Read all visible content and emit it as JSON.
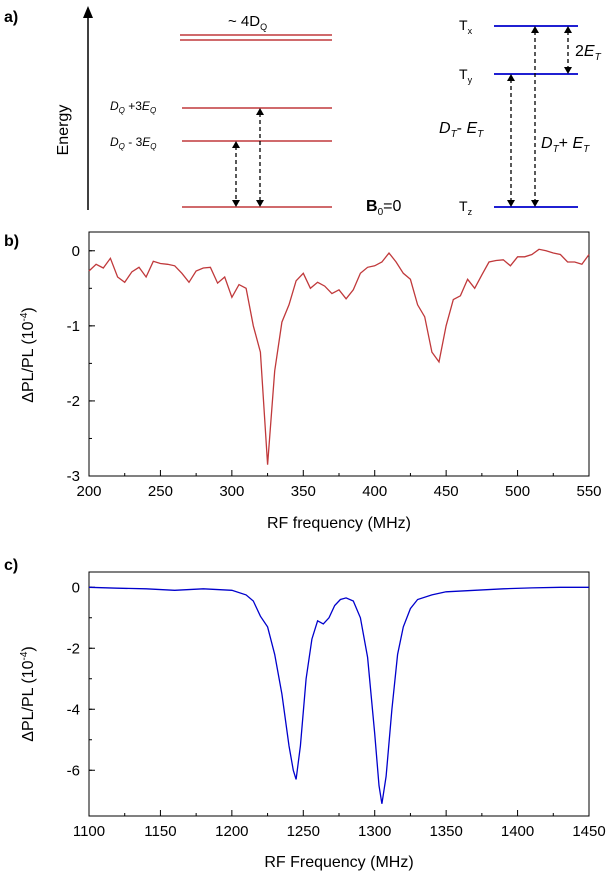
{
  "panel_a": {
    "label": "a)",
    "energy_label": "Energy",
    "quartet": {
      "top_label_main": "~ 4D",
      "top_label_sub": "Q",
      "upper_D": "D",
      "upper_Dsub": "Q",
      "upper_rest": " +3",
      "upper_E": "E",
      "upper_Esub": "Q",
      "lower_D": "D",
      "lower_Dsub": "Q",
      "lower_rest": " - 3",
      "lower_E": "E",
      "lower_Esub": "Q",
      "color": "#c0393b"
    },
    "b0_label_main": "B",
    "b0_label_sub": "0",
    "b0_label_rest": "=0",
    "triplet": {
      "tx": "T",
      "tx_sub": "x",
      "ty": "T",
      "ty_sub": "y",
      "tz": "T",
      "tz_sub": "z",
      "split_2": "2",
      "split_E": "E",
      "split_Esub": "T",
      "minus_D": "D",
      "minus_Dsub": "T",
      "minus_op": "- ",
      "minus_E": "E",
      "minus_Esub": "T",
      "plus_D": "D",
      "plus_Dsub": "T",
      "plus_op": "+ ",
      "plus_E": "E",
      "plus_Esub": "T",
      "color": "#0000cc"
    }
  },
  "chart_data": [
    {
      "panel_label": "b)",
      "type": "line",
      "xlabel": "RF frequency (MHz)",
      "ylabel_main": "ΔPL/PL (10",
      "ylabel_exp": "-4",
      "ylabel_close": ")",
      "xlim": [
        200,
        550
      ],
      "ylim": [
        -3,
        0.25
      ],
      "xticks": [
        200,
        250,
        300,
        350,
        400,
        450,
        500,
        550
      ],
      "yticks": [
        0,
        -1,
        -2,
        -3
      ],
      "color": "#c0393b",
      "x": [
        200,
        205,
        210,
        215,
        220,
        225,
        230,
        235,
        240,
        245,
        250,
        255,
        260,
        265,
        270,
        275,
        280,
        285,
        290,
        295,
        300,
        305,
        310,
        315,
        320,
        325,
        330,
        335,
        340,
        345,
        350,
        355,
        360,
        365,
        370,
        375,
        380,
        385,
        390,
        395,
        400,
        405,
        410,
        415,
        420,
        425,
        430,
        435,
        440,
        445,
        450,
        455,
        460,
        465,
        470,
        475,
        480,
        485,
        490,
        495,
        500,
        505,
        510,
        515,
        520,
        525,
        530,
        535,
        540,
        545,
        550
      ],
      "y": [
        -0.27,
        -0.18,
        -0.23,
        -0.1,
        -0.35,
        -0.42,
        -0.28,
        -0.22,
        -0.35,
        -0.14,
        -0.17,
        -0.18,
        -0.2,
        -0.3,
        -0.42,
        -0.27,
        -0.23,
        -0.22,
        -0.43,
        -0.35,
        -0.62,
        -0.45,
        -0.5,
        -1.0,
        -1.35,
        -2.85,
        -1.6,
        -0.95,
        -0.72,
        -0.4,
        -0.3,
        -0.5,
        -0.42,
        -0.47,
        -0.57,
        -0.52,
        -0.64,
        -0.52,
        -0.3,
        -0.22,
        -0.2,
        -0.15,
        -0.03,
        -0.15,
        -0.3,
        -0.38,
        -0.72,
        -0.88,
        -1.35,
        -1.48,
        -1.0,
        -0.65,
        -0.6,
        -0.38,
        -0.5,
        -0.32,
        -0.15,
        -0.13,
        -0.12,
        -0.2,
        -0.08,
        -0.08,
        -0.05,
        0.02,
        0.0,
        -0.03,
        -0.05,
        -0.15,
        -0.15,
        -0.18,
        -0.05
      ]
    },
    {
      "panel_label": "c)",
      "type": "line",
      "xlabel": "RF Frequency (MHz)",
      "ylabel_main": "ΔPL/PL (10",
      "ylabel_exp": "-4",
      "ylabel_close": ")",
      "xlim": [
        1100,
        1450
      ],
      "ylim": [
        -7.5,
        0.5
      ],
      "xticks": [
        1100,
        1150,
        1200,
        1250,
        1300,
        1350,
        1400,
        1450
      ],
      "yticks": [
        0,
        -2,
        -4,
        -6
      ],
      "color": "#0000cc",
      "x": [
        1100,
        1120,
        1140,
        1160,
        1180,
        1200,
        1210,
        1215,
        1220,
        1225,
        1230,
        1235,
        1240,
        1243,
        1245,
        1248,
        1252,
        1256,
        1260,
        1264,
        1268,
        1272,
        1276,
        1280,
        1285,
        1290,
        1295,
        1300,
        1303,
        1305,
        1308,
        1312,
        1316,
        1320,
        1325,
        1330,
        1340,
        1350,
        1370,
        1390,
        1410,
        1430,
        1450
      ],
      "y": [
        0.0,
        -0.03,
        -0.05,
        -0.1,
        -0.05,
        -0.1,
        -0.25,
        -0.45,
        -0.95,
        -1.3,
        -2.2,
        -3.5,
        -5.2,
        -6.0,
        -6.3,
        -5.2,
        -3.0,
        -1.7,
        -1.1,
        -1.2,
        -1.0,
        -0.6,
        -0.4,
        -0.35,
        -0.45,
        -1.0,
        -2.3,
        -4.8,
        -6.5,
        -7.1,
        -6.2,
        -4.0,
        -2.2,
        -1.3,
        -0.7,
        -0.4,
        -0.25,
        -0.15,
        -0.1,
        -0.05,
        -0.02,
        0.0,
        0.0
      ]
    }
  ]
}
